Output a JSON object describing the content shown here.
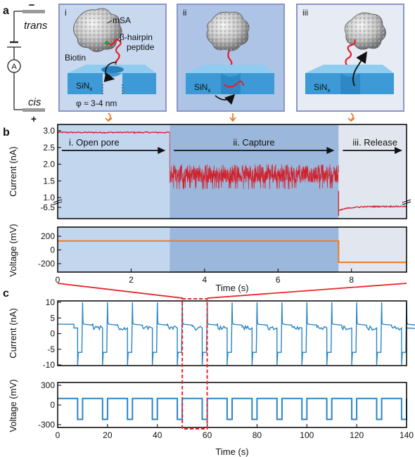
{
  "panel_labels": {
    "a": "a",
    "b": "b",
    "c": "c"
  },
  "circuit": {
    "trans": "trans",
    "cis": "cis",
    "minus": "−",
    "plus": "+",
    "ammeter": "A"
  },
  "insets": [
    {
      "label": "i",
      "mSA": "mSA",
      "biotin": "Biotin",
      "hairpin_1": "β-hairpin",
      "hairpin_2": "peptide",
      "sin": "SiN",
      "sin_sub": "x",
      "diameter": "φ ≈ 3-4 nm"
    },
    {
      "label": "ii",
      "sin": "SiN",
      "sin_sub": "x"
    },
    {
      "label": "iii",
      "sin": "SiN",
      "sin_sub": "x"
    }
  ],
  "colors": {
    "inset_border": "#8a96c8",
    "inset_fill_1": "#c8d8ef",
    "inset_fill_2": "#aec4e6",
    "inset_fill_3": "#e6ebf4",
    "membrane": "#3d9ad6",
    "orange": "#f07a20",
    "red_trace": "#d1212b",
    "blue_trace": "#2a84c4",
    "region_open": "#c2d6ee",
    "region_capture": "#9cb7dc",
    "region_release": "#e2e7ef",
    "zoom_box": "#e8262b"
  },
  "chart_data": [
    {
      "type": "line",
      "panel": "b-top",
      "ylabel": "Current (nA)",
      "xlim": [
        0,
        9.5
      ],
      "yticks_upper": [
        3.0,
        2.5,
        2.0,
        1.5,
        1.0
      ],
      "ytick_labels": [
        "3.0",
        "2.5",
        "2.0",
        "1.5",
        "1.0",
        "-6.5"
      ],
      "regions": [
        {
          "label": "i. Open pore",
          "x": [
            0,
            3.05
          ]
        },
        {
          "label": "ii. Capture",
          "x": [
            3.05,
            7.65
          ]
        },
        {
          "label": "iii. Release",
          "x": [
            7.65,
            9.5
          ]
        }
      ],
      "series": [
        {
          "segment": "open pore",
          "x": [
            0,
            3.05
          ],
          "level": 2.95
        },
        {
          "segment": "capture",
          "x": [
            3.05,
            7.65
          ],
          "level_range": [
            1.25,
            2.0
          ]
        },
        {
          "segment": "release",
          "x": [
            7.65,
            9.5
          ],
          "level_start": -6.85,
          "level_end": -6.4
        }
      ]
    },
    {
      "type": "line",
      "panel": "b-bottom",
      "ylabel": "Voltage (mV)",
      "xlabel": "Time (s)",
      "xlim": [
        0,
        9.5
      ],
      "ylim": [
        -200,
        200
      ],
      "xticks": [
        0,
        2,
        4,
        6,
        8
      ],
      "yticks": [
        200,
        0,
        -200
      ],
      "series": [
        {
          "x": [
            0,
            7.65,
            7.65,
            9.5
          ],
          "y": [
            130,
            130,
            -180,
            -180
          ]
        }
      ]
    },
    {
      "type": "line",
      "panel": "c-top",
      "ylabel": "Current (nA)",
      "xlim": [
        0,
        140
      ],
      "ylim": [
        -10,
        10
      ],
      "yticks": [
        10,
        5,
        0,
        -5,
        -10
      ],
      "zoom_window": [
        50,
        60
      ],
      "cycle_period": 10,
      "cycle_start": 8,
      "levels": {
        "initial_high": 3,
        "peak": 10,
        "trough": -10,
        "negative": -6,
        "post_spike": 1.8,
        "flat_high": 2.7
      }
    },
    {
      "type": "line",
      "panel": "c-bottom",
      "ylabel": "Voltage (mV)",
      "xlabel": "Time (s)",
      "xlim": [
        0,
        140
      ],
      "ylim": [
        -300,
        300
      ],
      "xticks": [
        0,
        20,
        40,
        60,
        80,
        100,
        120,
        140
      ],
      "yticks": [
        300,
        0,
        -300
      ],
      "high": 100,
      "low": -220,
      "cycle_period": 10,
      "low_duration": 2
    }
  ]
}
